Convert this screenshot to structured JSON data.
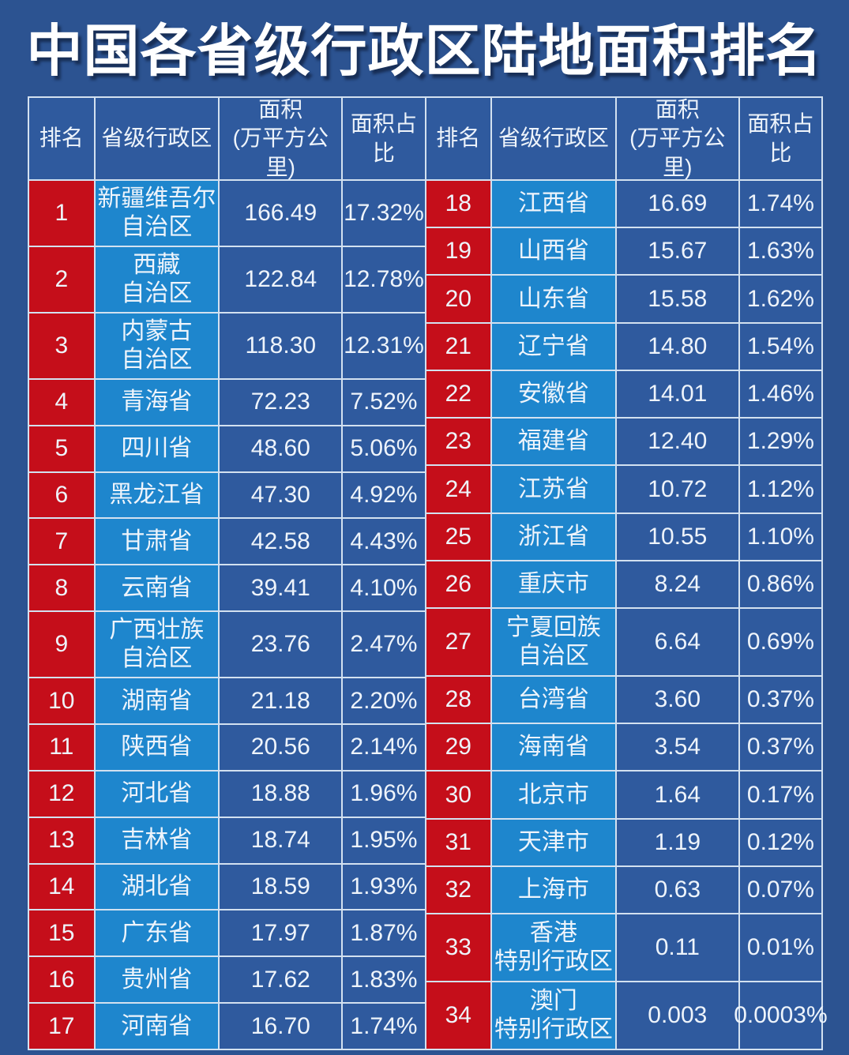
{
  "title": "中国各省级行政区陆地面积排名",
  "colors": {
    "background": "#2c5391",
    "rank_red": "#c50e1a",
    "province_blue": "#1e86cd",
    "value_blue": "#2f5a9e",
    "gridline": "#d3e1f0",
    "text": "#eef4fb"
  },
  "chart_data": {
    "type": "table",
    "title": "中国各省级行政区陆地面积排名",
    "columns": [
      "排名",
      "省级行政区",
      "面积\n(万平方公里)",
      "面积占比"
    ],
    "left_rows": [
      {
        "rank": "1",
        "name": "新疆维吾尔\n自治区",
        "area": "166.49",
        "share": "17.32%"
      },
      {
        "rank": "2",
        "name": "西藏\n自治区",
        "area": "122.84",
        "share": "12.78%"
      },
      {
        "rank": "3",
        "name": "内蒙古\n自治区",
        "area": "118.30",
        "share": "12.31%"
      },
      {
        "rank": "4",
        "name": "青海省",
        "area": "72.23",
        "share": "7.52%"
      },
      {
        "rank": "5",
        "name": "四川省",
        "area": "48.60",
        "share": "5.06%"
      },
      {
        "rank": "6",
        "name": "黑龙江省",
        "area": "47.30",
        "share": "4.92%"
      },
      {
        "rank": "7",
        "name": "甘肃省",
        "area": "42.58",
        "share": "4.43%"
      },
      {
        "rank": "8",
        "name": "云南省",
        "area": "39.41",
        "share": "4.10%"
      },
      {
        "rank": "9",
        "name": "广西壮族\n自治区",
        "area": "23.76",
        "share": "2.47%"
      },
      {
        "rank": "10",
        "name": "湖南省",
        "area": "21.18",
        "share": "2.20%"
      },
      {
        "rank": "11",
        "name": "陕西省",
        "area": "20.56",
        "share": "2.14%"
      },
      {
        "rank": "12",
        "name": "河北省",
        "area": "18.88",
        "share": "1.96%"
      },
      {
        "rank": "13",
        "name": "吉林省",
        "area": "18.74",
        "share": "1.95%"
      },
      {
        "rank": "14",
        "name": "湖北省",
        "area": "18.59",
        "share": "1.93%"
      },
      {
        "rank": "15",
        "name": "广东省",
        "area": "17.97",
        "share": "1.87%"
      },
      {
        "rank": "16",
        "name": "贵州省",
        "area": "17.62",
        "share": "1.83%"
      },
      {
        "rank": "17",
        "name": "河南省",
        "area": "16.70",
        "share": "1.74%"
      }
    ],
    "right_rows": [
      {
        "rank": "18",
        "name": "江西省",
        "area": "16.69",
        "share": "1.74%"
      },
      {
        "rank": "19",
        "name": "山西省",
        "area": "15.67",
        "share": "1.63%"
      },
      {
        "rank": "20",
        "name": "山东省",
        "area": "15.58",
        "share": "1.62%"
      },
      {
        "rank": "21",
        "name": "辽宁省",
        "area": "14.80",
        "share": "1.54%"
      },
      {
        "rank": "22",
        "name": "安徽省",
        "area": "14.01",
        "share": "1.46%"
      },
      {
        "rank": "23",
        "name": "福建省",
        "area": "12.40",
        "share": "1.29%"
      },
      {
        "rank": "24",
        "name": "江苏省",
        "area": "10.72",
        "share": "1.12%"
      },
      {
        "rank": "25",
        "name": "浙江省",
        "area": "10.55",
        "share": "1.10%"
      },
      {
        "rank": "26",
        "name": "重庆市",
        "area": "8.24",
        "share": "0.86%"
      },
      {
        "rank": "27",
        "name": "宁夏回族\n自治区",
        "area": "6.64",
        "share": "0.69%"
      },
      {
        "rank": "28",
        "name": "台湾省",
        "area": "3.60",
        "share": "0.37%"
      },
      {
        "rank": "29",
        "name": "海南省",
        "area": "3.54",
        "share": "0.37%"
      },
      {
        "rank": "30",
        "name": "北京市",
        "area": "1.64",
        "share": "0.17%"
      },
      {
        "rank": "31",
        "name": "天津市",
        "area": "1.19",
        "share": "0.12%"
      },
      {
        "rank": "32",
        "name": "上海市",
        "area": "0.63",
        "share": "0.07%"
      },
      {
        "rank": "33",
        "name": "香港\n特别行政区",
        "area": "0.11",
        "share": "0.01%"
      },
      {
        "rank": "34",
        "name": "澳门\n特别行政区",
        "area": "0.003",
        "share": "0.0003%"
      }
    ]
  }
}
